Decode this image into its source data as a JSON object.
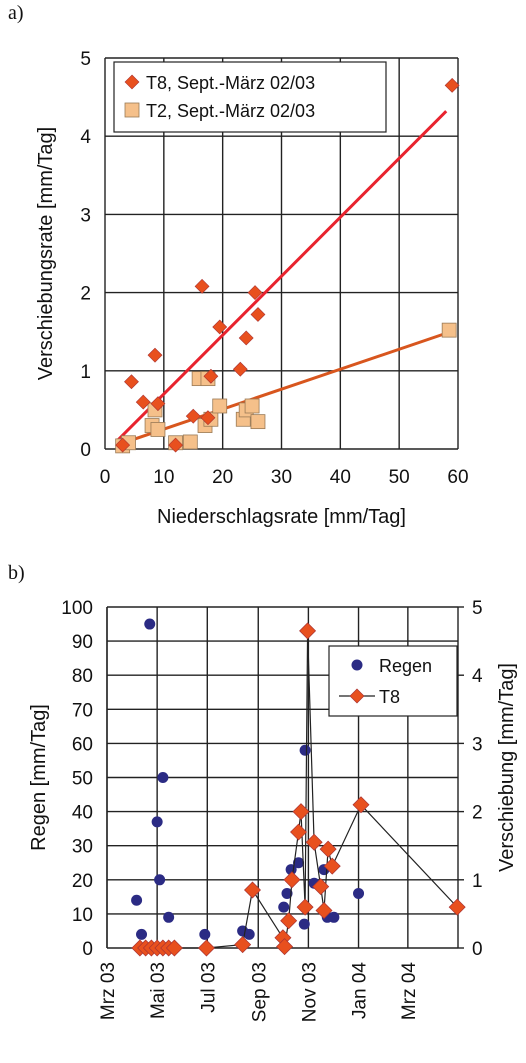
{
  "panels": {
    "a_label": "a)",
    "b_label": "b)"
  },
  "colors": {
    "t8_marker": "#e8501e",
    "t8_line": "#e8232e",
    "t2_marker": "#f5c08a",
    "t2_line": "#d8561e",
    "regen": "#2b2b84",
    "grid": "#222222"
  },
  "chart_data": [
    {
      "type": "scatter",
      "title": "",
      "xlabel": "Niederschlagsrate [mm/Tag]",
      "ylabel": "Verschiebungsrate [mm/Tag]",
      "xlim": [
        0,
        60
      ],
      "ylim": [
        0,
        5
      ],
      "xticks": [
        0,
        10,
        20,
        30,
        40,
        50,
        60
      ],
      "yticks": [
        0,
        1,
        2,
        3,
        4,
        5
      ],
      "grid": true,
      "legend": "top-left",
      "series": [
        {
          "name": "T8, Sept.-März 02/03",
          "marker": "diamond",
          "points": [
            [
              3,
              0.05
            ],
            [
              4.5,
              0.86
            ],
            [
              6.5,
              0.6
            ],
            [
              8.5,
              1.2
            ],
            [
              9,
              0.58
            ],
            [
              12,
              0.05
            ],
            [
              15,
              0.42
            ],
            [
              16.5,
              2.08
            ],
            [
              17.5,
              0.4
            ],
            [
              18,
              0.93
            ],
            [
              19.5,
              1.56
            ],
            [
              23,
              1.02
            ],
            [
              24,
              1.42
            ],
            [
              25.5,
              2.0
            ],
            [
              26,
              1.72
            ],
            [
              59,
              4.65
            ]
          ],
          "trendline": [
            [
              2,
              0.1
            ],
            [
              58,
              4.32
            ]
          ]
        },
        {
          "name": "T2, Sept.-März 02/03",
          "marker": "square",
          "points": [
            [
              3,
              0.04
            ],
            [
              4,
              0.08
            ],
            [
              8,
              0.3
            ],
            [
              8.5,
              0.5
            ],
            [
              9,
              0.25
            ],
            [
              12,
              0.08
            ],
            [
              14.5,
              0.09
            ],
            [
              16,
              0.9
            ],
            [
              17,
              0.3
            ],
            [
              17.5,
              0.9
            ],
            [
              18,
              0.38
            ],
            [
              19.5,
              0.55
            ],
            [
              23.5,
              0.38
            ],
            [
              24,
              0.5
            ],
            [
              25,
              0.55
            ],
            [
              26,
              0.35
            ],
            [
              58.5,
              1.52
            ]
          ],
          "trendline": [
            [
              2,
              0.05
            ],
            [
              58,
              1.48
            ]
          ]
        }
      ]
    },
    {
      "type": "scatter",
      "title": "",
      "xlabel": "",
      "ylabel": "Regen [mm/Tag]",
      "ylabel_right": "Verschiebung [mm/Tag]",
      "ylim": [
        0,
        100
      ],
      "ylim_right": [
        0,
        5
      ],
      "yticks": [
        0,
        10,
        20,
        30,
        40,
        50,
        60,
        70,
        80,
        90,
        100
      ],
      "yticks_right": [
        0,
        1,
        2,
        3,
        4,
        5
      ],
      "xlim": [
        "2003-03-01",
        "2004-05-01"
      ],
      "xticks": [
        "2003-03-01",
        "2003-05-01",
        "2003-07-01",
        "2003-09-01",
        "2003-11-01",
        "2004-01-01",
        "2004-03-01"
      ],
      "xtick_labels": [
        "Mrz 03",
        "Mai 03",
        "Jul 03",
        "Sep 03",
        "Nov 03",
        "Jan 04",
        "Mrz 04"
      ],
      "grid": true,
      "legend": "top-right",
      "series": [
        {
          "name": "Regen",
          "axis": "left",
          "marker": "circle",
          "points": [
            [
              "2003-04-06",
              14
            ],
            [
              "2003-04-12",
              4
            ],
            [
              "2003-04-22",
              95
            ],
            [
              "2003-05-01",
              37
            ],
            [
              "2003-05-04",
              20
            ],
            [
              "2003-05-08",
              50
            ],
            [
              "2003-05-15",
              9
            ],
            [
              "2003-06-28",
              4
            ],
            [
              "2003-08-13",
              5
            ],
            [
              "2003-08-21",
              4
            ],
            [
              "2003-10-02",
              12
            ],
            [
              "2003-10-06",
              16
            ],
            [
              "2003-10-11",
              23
            ],
            [
              "2003-10-20",
              25
            ],
            [
              "2003-10-27",
              7
            ],
            [
              "2003-10-28",
              58
            ],
            [
              "2003-11-08",
              19
            ],
            [
              "2003-11-20",
              23
            ],
            [
              "2003-11-24",
              9
            ],
            [
              "2003-12-02",
              9
            ],
            [
              "2004-01-01",
              16
            ]
          ]
        },
        {
          "name": "T8",
          "axis": "right",
          "marker": "diamond",
          "connected": true,
          "points": [
            [
              "2003-04-10",
              0
            ],
            [
              "2003-04-17",
              0
            ],
            [
              "2003-04-24",
              0
            ],
            [
              "2003-05-01",
              0
            ],
            [
              "2003-05-08",
              0
            ],
            [
              "2003-05-15",
              0
            ],
            [
              "2003-05-22",
              0
            ],
            [
              "2003-06-30",
              0
            ],
            [
              "2003-08-13",
              0.05
            ],
            [
              "2003-08-25",
              0.85
            ],
            [
              "2003-10-01",
              0.15
            ],
            [
              "2003-10-03",
              0.02
            ],
            [
              "2003-10-08",
              0.4
            ],
            [
              "2003-10-12",
              1.0
            ],
            [
              "2003-10-20",
              1.7
            ],
            [
              "2003-10-23",
              2.0
            ],
            [
              "2003-10-28",
              0.6
            ],
            [
              "2003-10-31",
              4.65
            ],
            [
              "2003-11-08",
              1.55
            ],
            [
              "2003-11-16",
              0.9
            ],
            [
              "2003-11-20",
              0.55
            ],
            [
              "2003-11-25",
              1.45
            ],
            [
              "2003-11-30",
              1.2
            ],
            [
              "2004-01-04",
              2.1
            ],
            [
              "2004-04-30",
              0.6
            ]
          ]
        }
      ]
    }
  ]
}
